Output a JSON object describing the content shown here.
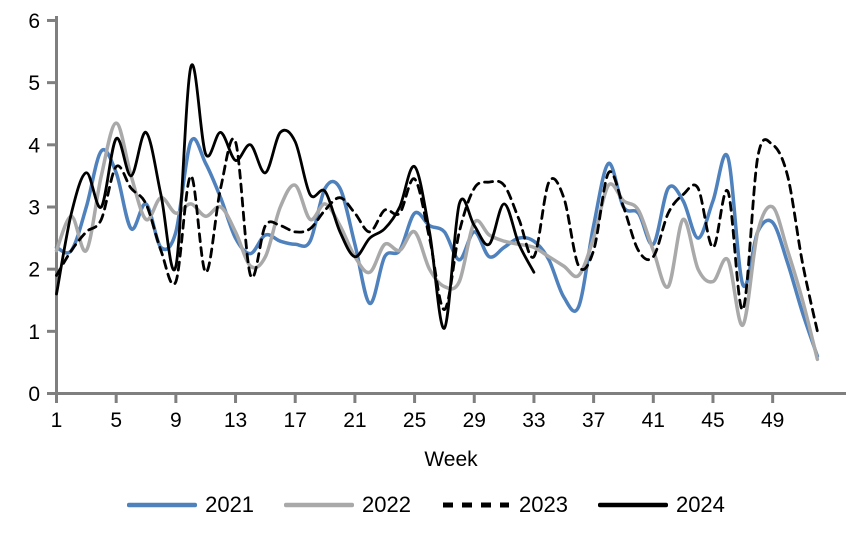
{
  "chart_data": {
    "type": "line",
    "title": "",
    "xlabel": "Week",
    "ylabel": "",
    "xlim": [
      1,
      53.5
    ],
    "ylim": [
      0,
      6
    ],
    "grid": false,
    "x_ticks": [
      1,
      5,
      9,
      13,
      17,
      21,
      25,
      29,
      33,
      37,
      41,
      45,
      49
    ],
    "y_ticks": [
      0,
      1,
      2,
      3,
      4,
      5,
      6
    ],
    "x_unit": "week_number",
    "axis_color": "#7F7F7F",
    "legend_position": "bottom",
    "series": [
      {
        "name": "2021",
        "color": "#4F81BD",
        "style": "solid",
        "start_week": 1,
        "values": [
          2.35,
          2.3,
          3.0,
          3.9,
          3.55,
          2.65,
          3.05,
          2.35,
          2.6,
          4.05,
          3.7,
          3.15,
          2.5,
          2.25,
          2.55,
          2.45,
          2.4,
          2.45,
          3.3,
          3.3,
          2.4,
          1.45,
          2.2,
          2.3,
          2.9,
          2.7,
          2.6,
          2.15,
          2.6,
          2.2,
          2.35,
          2.5,
          2.45,
          2.15,
          1.55,
          1.4,
          2.7,
          3.7,
          3.0,
          2.9,
          2.4,
          3.3,
          3.1,
          2.5,
          3.1,
          3.8,
          1.75,
          2.6,
          2.75,
          2.1,
          1.3,
          0.6
        ]
      },
      {
        "name": "2022",
        "color": "#A9A9A9",
        "style": "solid",
        "start_week": 1,
        "values": [
          2.3,
          2.85,
          2.3,
          3.5,
          4.35,
          3.5,
          2.8,
          3.15,
          2.9,
          3.05,
          2.85,
          3.0,
          2.6,
          2.05,
          2.2,
          3.0,
          3.35,
          2.8,
          3.05,
          2.7,
          2.2,
          1.95,
          2.4,
          2.3,
          2.6,
          2.0,
          1.72,
          1.8,
          2.75,
          2.55,
          2.45,
          2.4,
          2.35,
          2.2,
          2.05,
          1.9,
          2.5,
          3.35,
          3.1,
          2.95,
          2.3,
          1.72,
          2.8,
          2.0,
          1.8,
          2.15,
          1.1,
          2.6,
          3.0,
          2.3,
          1.5,
          0.55
        ]
      },
      {
        "name": "2023",
        "color": "#000000",
        "style": "dashed",
        "start_week": 1,
        "values": [
          1.9,
          2.3,
          2.6,
          2.8,
          3.65,
          3.3,
          3.05,
          2.3,
          1.8,
          3.5,
          1.95,
          3.3,
          4.05,
          1.9,
          2.7,
          2.7,
          2.6,
          2.65,
          2.95,
          3.15,
          2.9,
          2.6,
          2.95,
          2.9,
          3.45,
          2.5,
          1.35,
          2.6,
          3.3,
          3.4,
          3.35,
          2.8,
          2.2,
          3.4,
          3.15,
          2.05,
          2.3,
          3.55,
          3.0,
          2.3,
          2.2,
          2.9,
          3.2,
          3.3,
          2.35,
          3.25,
          1.35,
          3.8,
          4.0,
          3.5,
          2.1,
          1.0
        ]
      },
      {
        "name": "2024",
        "color": "#000000",
        "style": "solid",
        "start_week": 1,
        "values": [
          1.6,
          2.9,
          3.55,
          3.0,
          4.1,
          3.5,
          4.2,
          3.2,
          2.05,
          5.25,
          3.85,
          4.2,
          3.75,
          4.0,
          3.55,
          4.2,
          4.05,
          3.2,
          3.25,
          2.6,
          2.2,
          2.5,
          2.65,
          3.0,
          3.65,
          2.6,
          1.05,
          3.05,
          2.7,
          2.4,
          3.05,
          2.4,
          1.95
        ]
      }
    ]
  },
  "legend": {
    "items": [
      {
        "label": "2021",
        "series_index": 0
      },
      {
        "label": "2022",
        "series_index": 1
      },
      {
        "label": "2023",
        "series_index": 2
      },
      {
        "label": "2024",
        "series_index": 3
      }
    ]
  }
}
